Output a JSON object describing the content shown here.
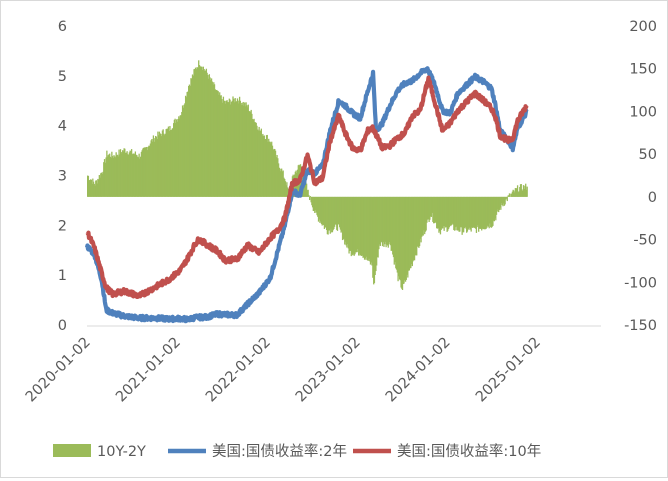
{
  "chart_data": {
    "type": "line+area",
    "title": "",
    "xlabel": "",
    "ylabel_left": "",
    "ylabel_right": "",
    "x_range": [
      "2020-01-02",
      "2025-01-02"
    ],
    "x_ticks": [
      "2020-01-02",
      "2021-01-02",
      "2022-01-02",
      "2023-01-02",
      "2024-01-02",
      "2025-01-02"
    ],
    "y_left": {
      "min": 0,
      "max": 6,
      "ticks": [
        "0",
        "1",
        "2",
        "3",
        "4",
        "5",
        "6"
      ]
    },
    "y_right": {
      "min": -150,
      "max": 200,
      "ticks": [
        "200",
        "150",
        "100",
        "50",
        "0",
        "-50",
        "-100",
        "-150"
      ]
    },
    "grid": false,
    "legend_position": "bottom",
    "legend": [
      {
        "label": "10Y-2Y",
        "series": "10Y-2Y"
      },
      {
        "label": "美国:国债收益率:2年",
        "series": "美国:国债收益率:2年"
      },
      {
        "label": "美国:国债收益率:10年",
        "series": "美国:国债收益率:10年"
      }
    ],
    "series": [
      {
        "name": "10Y-2Y",
        "kind": "area",
        "axis": "right",
        "color": "#9bbb59",
        "x": [
          "2020-01-02",
          "2020-02-01",
          "2020-03-01",
          "2020-03-20",
          "2020-04-15",
          "2020-06-01",
          "2020-08-01",
          "2020-10-01",
          "2020-12-01",
          "2021-01-15",
          "2021-02-15",
          "2021-03-15",
          "2021-03-31",
          "2021-05-01",
          "2021-06-15",
          "2021-07-15",
          "2021-09-01",
          "2021-10-15",
          "2021-12-01",
          "2022-01-15",
          "2022-02-15",
          "2022-03-15",
          "2022-04-01",
          "2022-04-15",
          "2022-05-15",
          "2022-06-15",
          "2022-07-15",
          "2022-09-01",
          "2022-10-15",
          "2022-12-01",
          "2023-01-15",
          "2023-03-01",
          "2023-03-08",
          "2023-04-01",
          "2023-05-15",
          "2023-06-15",
          "2023-07-03",
          "2023-08-15",
          "2023-10-01",
          "2023-10-25",
          "2023-12-01",
          "2024-01-15",
          "2024-03-01",
          "2024-05-01",
          "2024-07-01",
          "2024-08-05",
          "2024-09-06",
          "2024-10-15",
          "2024-11-20"
        ],
        "values": [
          25,
          15,
          30,
          50,
          48,
          55,
          48,
          70,
          80,
          98,
          130,
          150,
          158,
          145,
          120,
          110,
          115,
          105,
          78,
          65,
          40,
          20,
          0,
          25,
          38,
          5,
          -20,
          -40,
          -35,
          -65,
          -65,
          -80,
          -105,
          -55,
          -55,
          -95,
          -108,
          -75,
          -40,
          -20,
          -40,
          -35,
          -40,
          -38,
          -32,
          -12,
          0,
          10,
          12
        ]
      },
      {
        "name": "美国:国债收益率:2年",
        "kind": "line",
        "axis": "left",
        "color": "#4f81bd",
        "x": [
          "2020-01-02",
          "2020-02-01",
          "2020-03-01",
          "2020-03-20",
          "2020-04-15",
          "2020-06-01",
          "2020-08-01",
          "2020-10-01",
          "2020-12-01",
          "2021-01-15",
          "2021-02-15",
          "2021-03-15",
          "2021-05-01",
          "2021-06-15",
          "2021-07-15",
          "2021-09-01",
          "2021-10-15",
          "2021-12-01",
          "2022-01-15",
          "2022-02-15",
          "2022-03-15",
          "2022-04-15",
          "2022-05-15",
          "2022-06-15",
          "2022-07-15",
          "2022-08-15",
          "2022-09-15",
          "2022-10-20",
          "2022-11-15",
          "2022-12-15",
          "2023-01-15",
          "2023-02-15",
          "2023-03-08",
          "2023-03-20",
          "2023-04-15",
          "2023-05-15",
          "2023-06-15",
          "2023-07-15",
          "2023-08-15",
          "2023-09-15",
          "2023-10-15",
          "2023-11-15",
          "2023-12-15",
          "2024-01-15",
          "2024-02-15",
          "2024-04-25",
          "2024-05-30",
          "2024-06-30",
          "2024-07-15",
          "2024-08-05",
          "2024-09-06",
          "2024-09-25",
          "2024-10-15",
          "2024-11-20"
        ],
        "values": [
          1.58,
          1.42,
          0.92,
          0.3,
          0.24,
          0.18,
          0.14,
          0.14,
          0.12,
          0.13,
          0.11,
          0.15,
          0.16,
          0.22,
          0.21,
          0.2,
          0.42,
          0.65,
          0.95,
          1.5,
          2.0,
          2.7,
          2.6,
          3.1,
          3.05,
          3.2,
          3.9,
          4.5,
          4.4,
          4.25,
          4.15,
          4.7,
          5.05,
          3.9,
          4.05,
          4.4,
          4.7,
          4.85,
          4.9,
          5.05,
          5.15,
          4.8,
          4.3,
          4.25,
          4.65,
          4.98,
          4.88,
          4.75,
          4.45,
          3.9,
          3.7,
          3.55,
          3.95,
          4.28
        ]
      },
      {
        "name": "美国:国债收益率:10年",
        "kind": "line",
        "axis": "left",
        "color": "#c0504d",
        "x": [
          "2020-01-02",
          "2020-02-01",
          "2020-03-01",
          "2020-03-20",
          "2020-04-15",
          "2020-06-01",
          "2020-08-01",
          "2020-10-01",
          "2020-12-01",
          "2021-01-15",
          "2021-02-15",
          "2021-03-15",
          "2021-03-31",
          "2021-05-01",
          "2021-06-15",
          "2021-07-15",
          "2021-09-01",
          "2021-10-15",
          "2021-12-01",
          "2022-01-15",
          "2022-02-15",
          "2022-03-15",
          "2022-04-15",
          "2022-05-15",
          "2022-06-15",
          "2022-07-15",
          "2022-08-15",
          "2022-09-15",
          "2022-10-20",
          "2022-11-15",
          "2022-12-15",
          "2023-01-15",
          "2023-02-15",
          "2023-03-08",
          "2023-04-15",
          "2023-05-15",
          "2023-06-15",
          "2023-07-15",
          "2023-08-15",
          "2023-09-15",
          "2023-10-19",
          "2023-11-15",
          "2023-12-15",
          "2024-01-15",
          "2024-02-15",
          "2024-04-25",
          "2024-05-30",
          "2024-06-30",
          "2024-07-15",
          "2024-08-05",
          "2024-09-06",
          "2024-09-25",
          "2024-10-15",
          "2024-11-20"
        ],
        "values": [
          1.88,
          1.55,
          1.05,
          0.75,
          0.62,
          0.68,
          0.58,
          0.75,
          0.92,
          1.1,
          1.35,
          1.62,
          1.72,
          1.62,
          1.48,
          1.3,
          1.32,
          1.6,
          1.45,
          1.75,
          1.9,
          2.15,
          2.85,
          2.9,
          3.4,
          2.85,
          2.95,
          3.7,
          4.2,
          3.85,
          3.55,
          3.5,
          3.9,
          3.95,
          3.55,
          3.6,
          3.75,
          3.85,
          4.2,
          4.3,
          4.95,
          4.45,
          3.9,
          4.05,
          4.3,
          4.65,
          4.5,
          4.35,
          4.2,
          3.8,
          3.7,
          3.75,
          4.1,
          4.4
        ]
      }
    ]
  }
}
